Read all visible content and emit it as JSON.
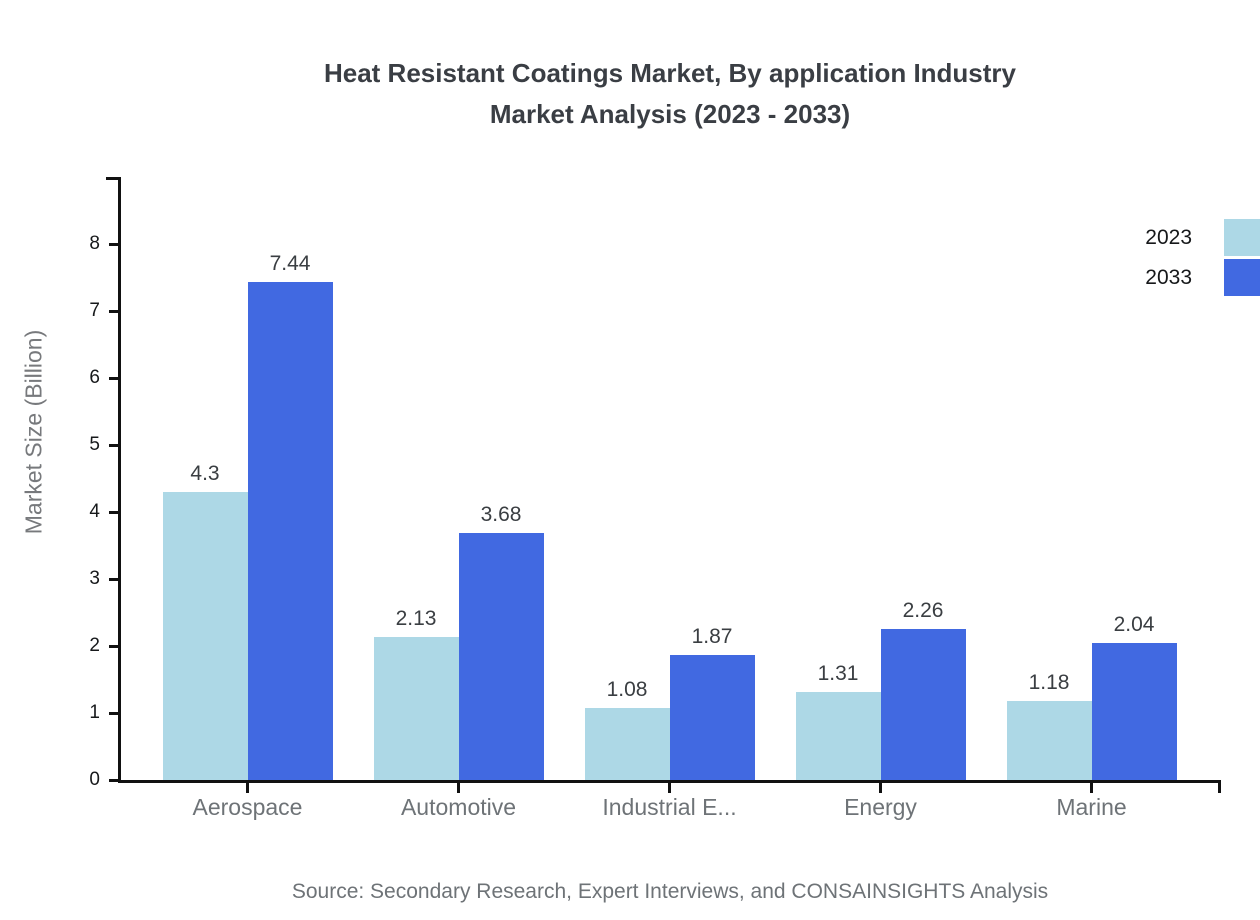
{
  "chart": {
    "title_line1": "Heat Resistant Coatings Market, By application Industry",
    "title_line2": "Market Analysis (2023 - 2033)",
    "ylabel": "Market Size (Billion)",
    "source": "Source: Secondary Research, Expert Interviews, and CONSAINSIGHTS Analysis"
  },
  "chart_data": {
    "type": "bar",
    "title": "Heat Resistant Coatings Market, By application Industry Market Analysis (2023 - 2033)",
    "categories": [
      "Aerospace",
      "Automotive",
      "Industrial E...",
      "Energy",
      "Marine"
    ],
    "series": [
      {
        "name": "2023",
        "color": "#ADD8E6",
        "values": [
          4.3,
          2.13,
          1.08,
          1.31,
          1.18
        ]
      },
      {
        "name": "2033",
        "color": "#4169E1",
        "values": [
          7.44,
          3.68,
          1.87,
          2.26,
          2.04
        ]
      }
    ],
    "xlabel": "",
    "ylabel": "Market Size (Billion)",
    "ylim": [
      0,
      9
    ],
    "yticks": [
      0,
      1,
      2,
      3,
      4,
      5,
      6,
      7,
      8
    ],
    "grid": false,
    "legend_position": "top-right",
    "bar_value_labels": true,
    "source": "Source: Secondary Research, Expert Interviews, and CONSAINSIGHTS Analysis"
  },
  "colors": {
    "series_2023": "#ADD8E6",
    "series_2033": "#4169E1",
    "axis": "#111111",
    "tick_label": "#17191b",
    "category_label": "#6e7377",
    "value_label": "#3a3e42",
    "title": "#3a3e44",
    "background": "#ffffff"
  }
}
